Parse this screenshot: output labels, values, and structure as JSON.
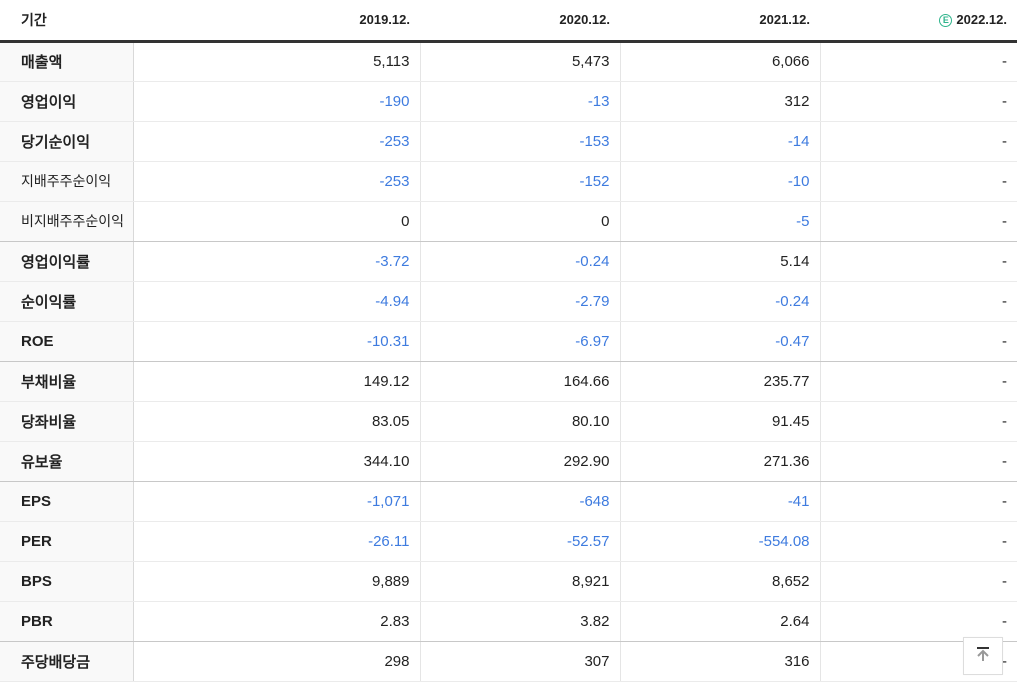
{
  "colors": {
    "negative_value": "#3e7bdf",
    "estimate_green": "#2fb48c",
    "header_border": "#333333",
    "group_border": "#c8c8c8",
    "row_border": "#ebebeb",
    "label_column_bg": "#f9f9f9"
  },
  "table": {
    "period_label": "기간",
    "columns": [
      "2019.12.",
      "2020.12.",
      "2021.12.",
      "2022.12."
    ],
    "estimate_badge": "E",
    "rows": [
      {
        "label": "매출액",
        "sub": false,
        "group_end": false,
        "values": [
          "5,113",
          "5,473",
          "6,066",
          "-"
        ]
      },
      {
        "label": "영업이익",
        "sub": false,
        "group_end": false,
        "values": [
          "-190",
          "-13",
          "312",
          "-"
        ]
      },
      {
        "label": "당기순이익",
        "sub": false,
        "group_end": false,
        "values": [
          "-253",
          "-153",
          "-14",
          "-"
        ]
      },
      {
        "label": "지배주주순이익",
        "sub": true,
        "group_end": false,
        "values": [
          "-253",
          "-152",
          "-10",
          "-"
        ]
      },
      {
        "label": "비지배주주순이익",
        "sub": true,
        "group_end": true,
        "values": [
          "0",
          "0",
          "-5",
          "-"
        ]
      },
      {
        "label": "영업이익률",
        "sub": false,
        "group_end": false,
        "values": [
          "-3.72",
          "-0.24",
          "5.14",
          "-"
        ]
      },
      {
        "label": "순이익률",
        "sub": false,
        "group_end": false,
        "values": [
          "-4.94",
          "-2.79",
          "-0.24",
          "-"
        ]
      },
      {
        "label": "ROE",
        "sub": false,
        "group_end": true,
        "values": [
          "-10.31",
          "-6.97",
          "-0.47",
          "-"
        ]
      },
      {
        "label": "부채비율",
        "sub": false,
        "group_end": false,
        "values": [
          "149.12",
          "164.66",
          "235.77",
          "-"
        ]
      },
      {
        "label": "당좌비율",
        "sub": false,
        "group_end": false,
        "values": [
          "83.05",
          "80.10",
          "91.45",
          "-"
        ]
      },
      {
        "label": "유보율",
        "sub": false,
        "group_end": true,
        "values": [
          "344.10",
          "292.90",
          "271.36",
          "-"
        ]
      },
      {
        "label": "EPS",
        "sub": false,
        "group_end": false,
        "values": [
          "-1,071",
          "-648",
          "-41",
          "-"
        ]
      },
      {
        "label": "PER",
        "sub": false,
        "group_end": false,
        "values": [
          "-26.11",
          "-52.57",
          "-554.08",
          "-"
        ]
      },
      {
        "label": "BPS",
        "sub": false,
        "group_end": false,
        "values": [
          "9,889",
          "8,921",
          "8,652",
          "-"
        ]
      },
      {
        "label": "PBR",
        "sub": false,
        "group_end": true,
        "values": [
          "2.83",
          "3.82",
          "2.64",
          "-"
        ]
      },
      {
        "label": "주당배당금",
        "sub": false,
        "group_end": false,
        "values": [
          "298",
          "307",
          "316",
          "-"
        ]
      }
    ]
  }
}
